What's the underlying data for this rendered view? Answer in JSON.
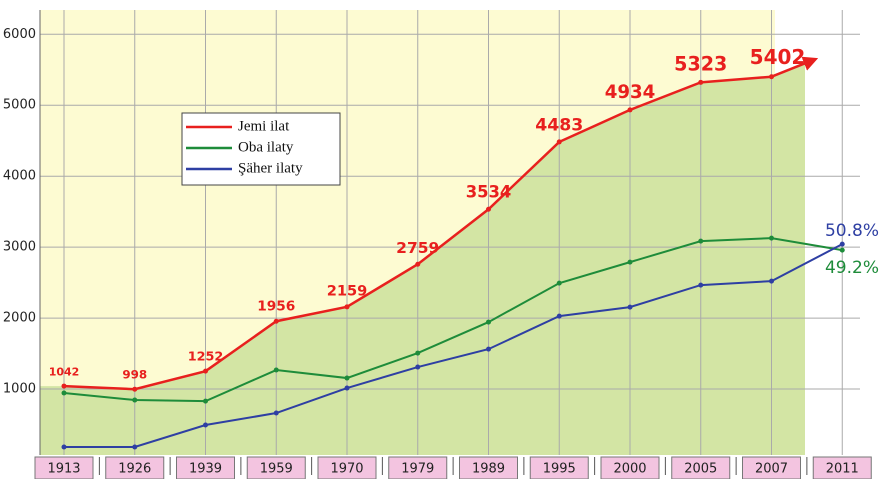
{
  "chart_data": {
    "type": "line",
    "categories": [
      "1913",
      "1926",
      "1939",
      "1959",
      "1970",
      "1979",
      "1989",
      "1995",
      "2000",
      "2005",
      "2007",
      "2011"
    ],
    "series": [
      {
        "name": "Jemi ilat",
        "color": "#e8201e",
        "values": [
          1042,
          998,
          1252,
          1956,
          2159,
          2759,
          3534,
          4483,
          4934,
          5323,
          5402,
          5800
        ]
      },
      {
        "name": "Oba ilaty",
        "color": "#1e8c3a",
        "values": [
          944,
          845,
          830,
          1268,
          1155,
          1507,
          1944,
          2493,
          2789,
          3085,
          3127,
          2958
        ]
      },
      {
        "name": "Şäher ilaty",
        "color": "#2e3fa3",
        "values": [
          183,
          183,
          493,
          662,
          1014,
          1310,
          1563,
          2028,
          2155,
          2465,
          2521,
          3042
        ]
      }
    ],
    "annotations": [
      {
        "text": "50.8%",
        "color": "#2e3fa3"
      },
      {
        "text": "49.2%",
        "color": "#1e8c3a"
      }
    ],
    "ylim": [
      0,
      6300
    ],
    "yticks": [
      1000,
      2000,
      3000,
      4000,
      5000,
      6000
    ],
    "grid": true,
    "fill_color": "#d3e5a4",
    "background_color": "#fdfbd2"
  }
}
